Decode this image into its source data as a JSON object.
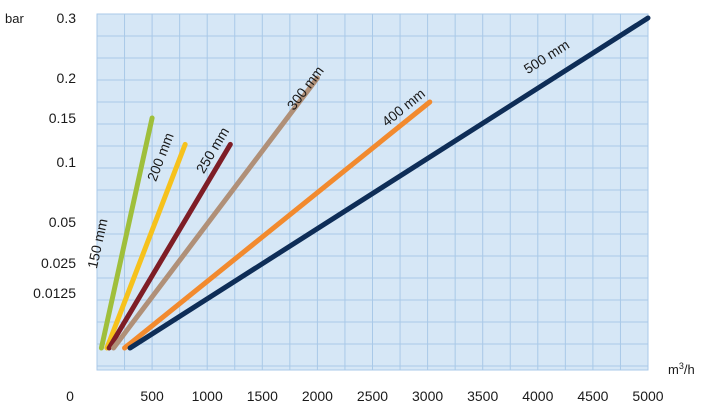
{
  "chart_data": {
    "type": "line",
    "title": "",
    "xlabel": "",
    "ylabel": "",
    "y_unit": "bar",
    "x_unit": {
      "base": "m",
      "sup": "3",
      "tail": "/h"
    },
    "x_origin_label": "0",
    "xlim": [
      0,
      5000
    ],
    "x_ticks": [
      500,
      1000,
      1500,
      2000,
      2500,
      3000,
      3500,
      4000,
      4500,
      5000
    ],
    "y_ticks": [
      "0.3",
      "0.2",
      "0.15",
      "0.1",
      "0.05",
      "0.025",
      "0.0125"
    ],
    "grid": true,
    "background_color": "#d6e7f6",
    "grid_color": "#a9c9e8",
    "series": [
      {
        "name": "150 mm",
        "color": "#9fbf3b",
        "x": [
          40,
          500
        ],
        "y": [
          "0.0125",
          "0.15"
        ]
      },
      {
        "name": "200 mm",
        "color": "#f6c21c",
        "x": [
          90,
          800
        ],
        "y": [
          "0.0125",
          "0.12"
        ]
      },
      {
        "name": "250 mm",
        "color": "#7e1d26",
        "x": [
          110,
          1210
        ],
        "y": [
          "0.0125",
          "0.12"
        ]
      },
      {
        "name": "300 mm",
        "color": "#b09078",
        "x": [
          150,
          2000
        ],
        "y": [
          "0.0125",
          "0.2"
        ]
      },
      {
        "name": "400 mm",
        "color": "#f28a2e",
        "x": [
          250,
          3020
        ],
        "y": [
          "0.0125",
          "0.17"
        ]
      },
      {
        "name": "500 mm",
        "color": "#0e2d57",
        "x": [
          300,
          5000
        ],
        "y": [
          "0.0125",
          "0.3"
        ]
      }
    ]
  }
}
